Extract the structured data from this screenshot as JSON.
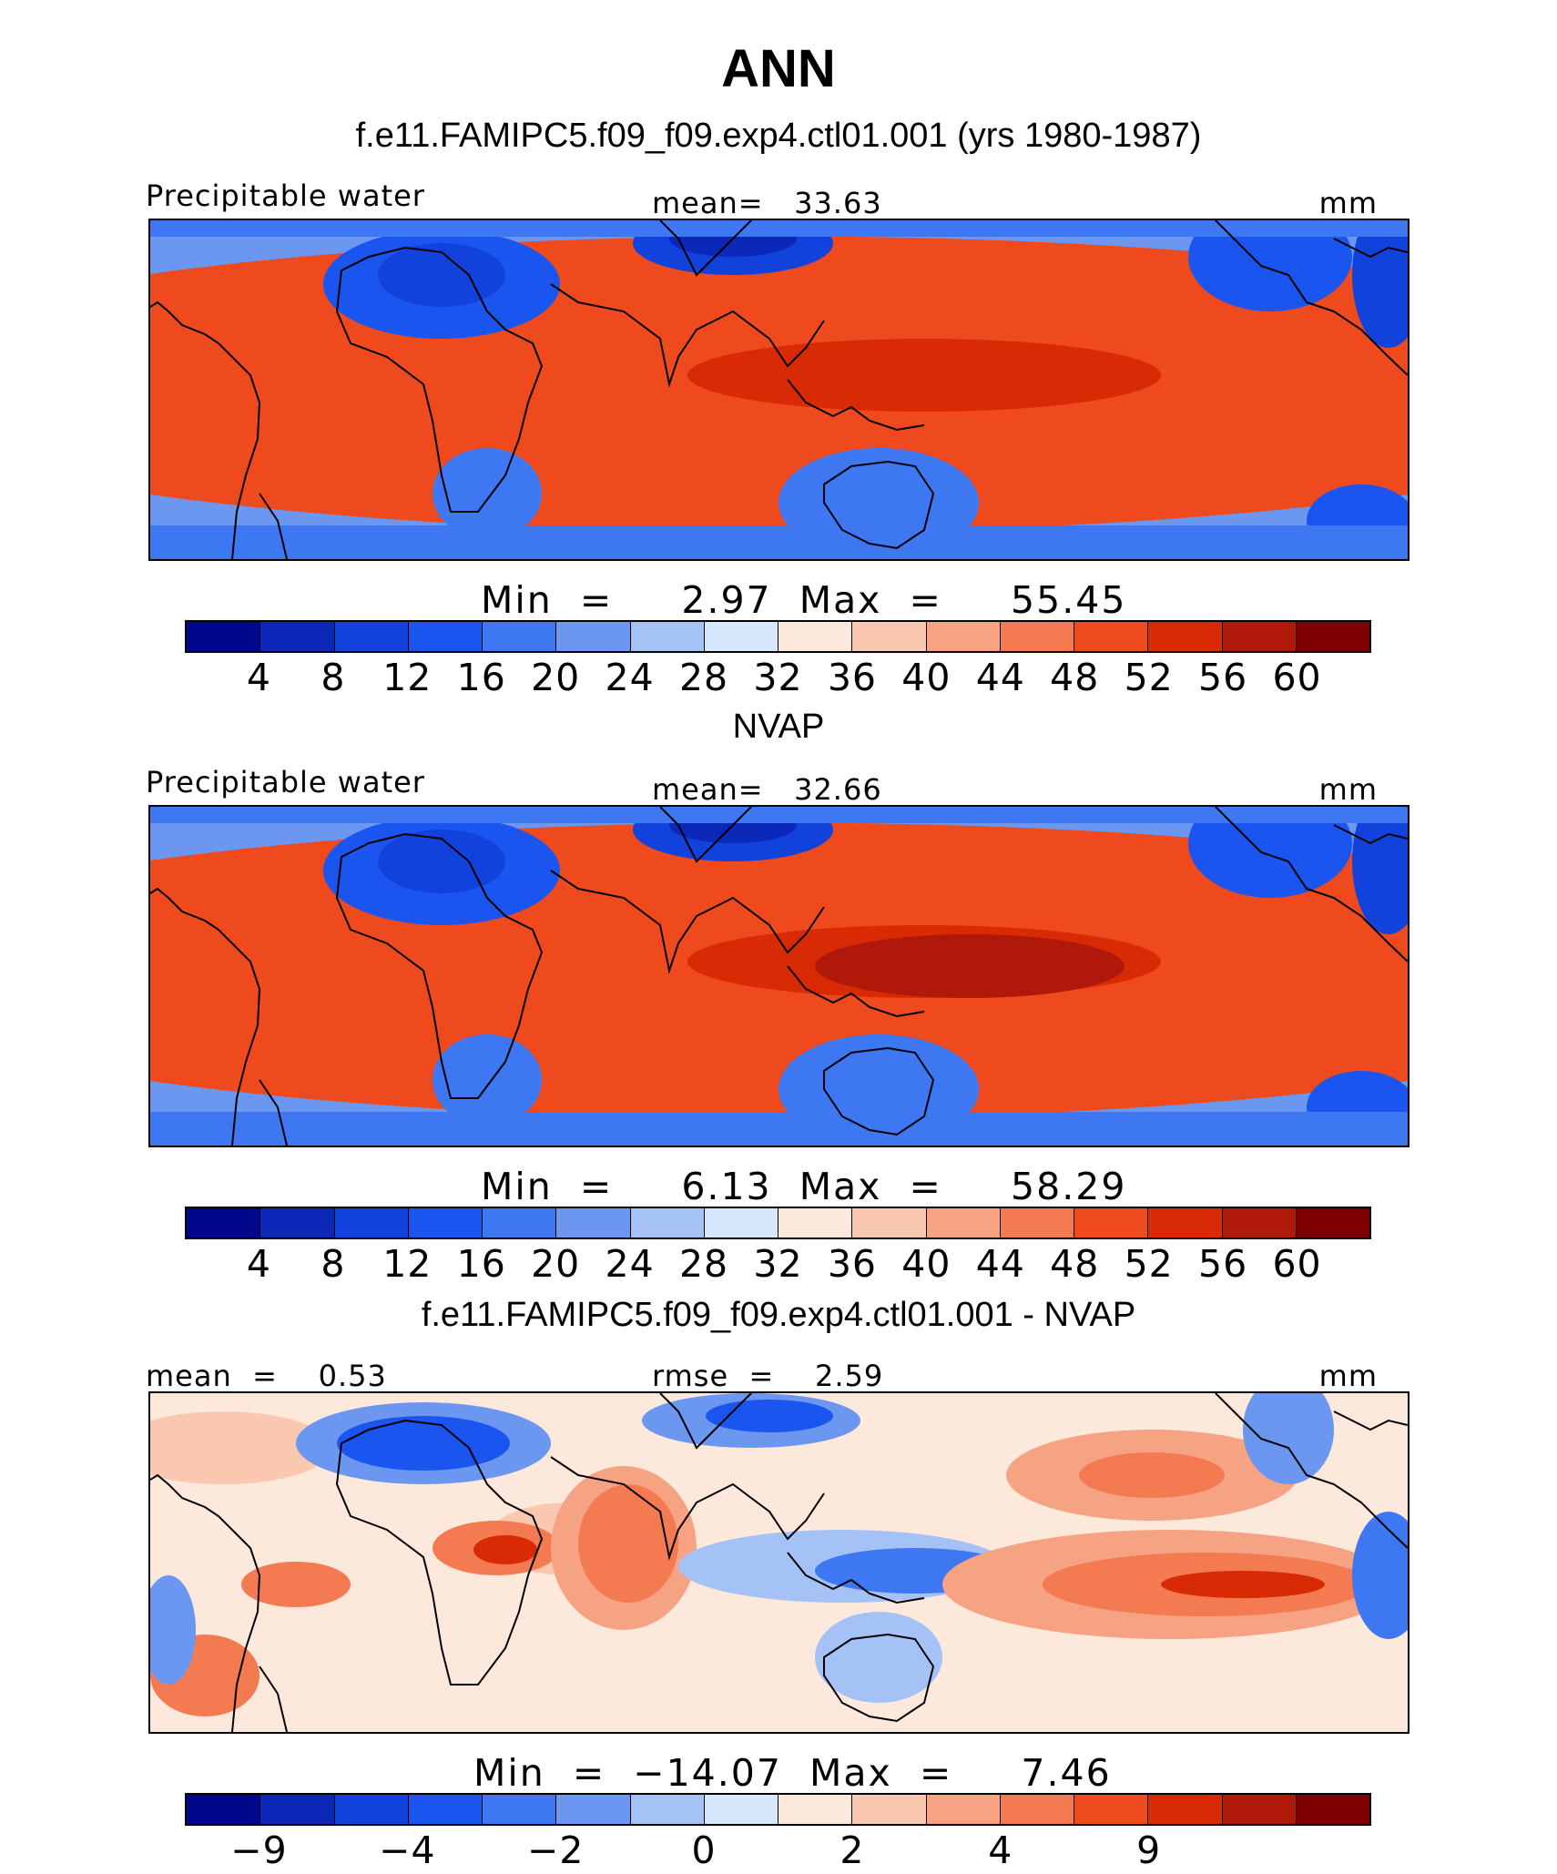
{
  "title": "ANN",
  "units": "mm",
  "colors": {
    "pw_scale": [
      "#00078c",
      "#0b28b8",
      "#1142dc",
      "#1a55f0",
      "#3d78f2",
      "#6b97f0",
      "#a5c2f7",
      "#d6e6fb",
      "#fde9dc",
      "#fac8b0",
      "#f6a384",
      "#f47a52",
      "#ef4a1e",
      "#d82a05",
      "#b0190a",
      "#7f0000"
    ],
    "diff_scale": [
      "#00078c",
      "#0b28b8",
      "#1142dc",
      "#1a55f0",
      "#3d78f2",
      "#6b97f0",
      "#a5c2f7",
      "#d6e6fb",
      "#fde9dc",
      "#fac8b0",
      "#f6a384",
      "#f47a52",
      "#ef4a1e",
      "#d82a05",
      "#b0190a",
      "#7f0000"
    ]
  },
  "panels": [
    {
      "title": "f.e11.FAMIPC5.f09_f09.exp4.ctl01.001 (yrs 1980-1987)",
      "left_label": "Precipitable water",
      "center_label": "mean=   33.63",
      "right_label": "mm",
      "minmax": "Min  =     2.97  Max  =     55.45",
      "ticks": [
        "4",
        "8",
        "12",
        "16",
        "20",
        "24",
        "28",
        "32",
        "36",
        "40",
        "44",
        "48",
        "52",
        "56",
        "60"
      ],
      "map_kind": "model"
    },
    {
      "title": "NVAP",
      "left_label": "Precipitable water",
      "center_label": "mean=   32.66",
      "right_label": "mm",
      "minmax": "Min  =     6.13  Max  =     58.29",
      "ticks": [
        "4",
        "8",
        "12",
        "16",
        "20",
        "24",
        "28",
        "32",
        "36",
        "40",
        "44",
        "48",
        "52",
        "56",
        "60"
      ],
      "map_kind": "obs"
    },
    {
      "title": "f.e11.FAMIPC5.f09_f09.exp4.ctl01.001 - NVAP",
      "left_label": "mean  =    0.53",
      "center_label": "rmse  =    2.59",
      "right_label": "mm",
      "minmax": "Min  =  −14.07  Max  =     7.46",
      "ticks": [
        "−9",
        "",
        "−4",
        "",
        "−2",
        "",
        "0",
        "",
        "2",
        "",
        "4",
        "",
        "9"
      ],
      "map_kind": "diff"
    }
  ]
}
